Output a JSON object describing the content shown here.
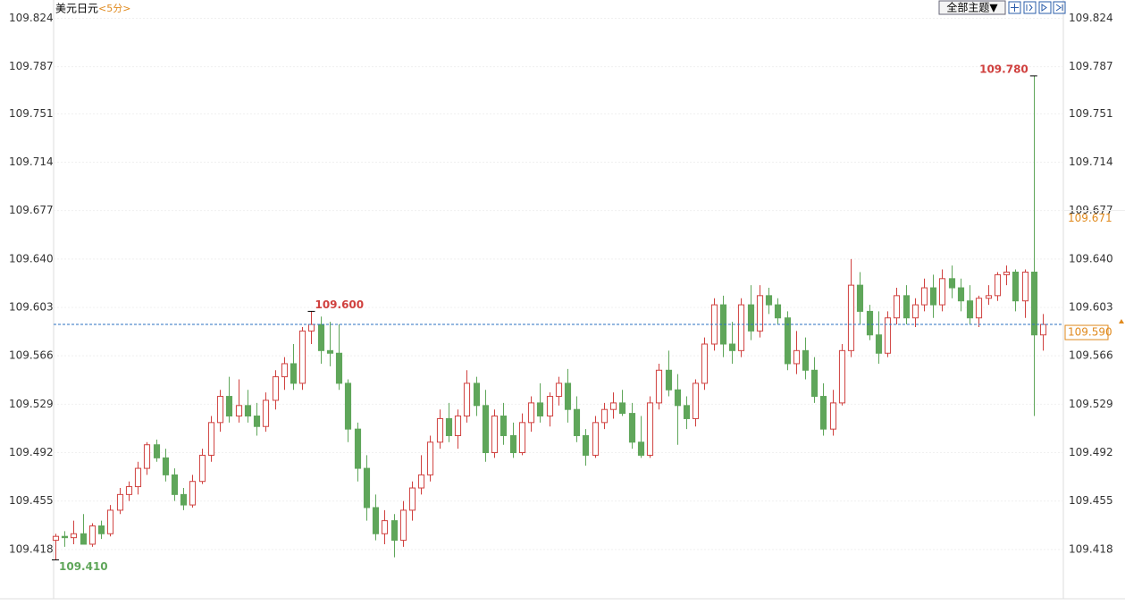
{
  "chart_data": {
    "type": "candlestick",
    "title": "美元日元",
    "period": "<5分>",
    "theme_button": "全部主题▼",
    "ylim": [
      109.381,
      109.838
    ],
    "yticks": [
      109.418,
      109.455,
      109.492,
      109.529,
      109.566,
      109.603,
      {
        "value": 109.64,
        "label": "109.640"
      },
      109.677,
      109.714,
      109.751,
      109.787,
      109.824
    ],
    "grid": true,
    "up_color": "#d0413f",
    "down_color": "#5fa65a",
    "open": [
      109.425,
      109.428,
      109.427,
      109.43,
      109.422,
      109.436,
      109.43,
      109.448,
      109.46,
      109.466,
      109.48,
      109.498,
      109.488,
      109.475,
      109.46,
      109.452,
      109.47,
      109.49,
      109.515,
      109.535,
      109.52,
      109.528,
      109.52,
      109.512,
      109.532,
      109.55,
      109.56,
      109.545,
      109.585,
      109.59,
      109.57,
      109.568,
      109.545,
      109.51,
      109.48,
      109.45,
      109.43,
      109.44,
      109.425,
      109.448,
      109.465,
      109.475,
      109.5,
      109.518,
      109.505,
      109.52,
      109.545,
      109.528,
      109.492,
      109.52,
      109.505,
      109.492,
      109.515,
      109.53,
      109.52,
      109.535,
      109.545,
      109.525,
      109.505,
      109.49,
      109.515,
      109.525,
      109.53,
      109.522,
      109.5,
      109.49,
      109.53,
      109.555,
      109.54,
      109.528,
      109.518,
      109.545,
      109.575,
      109.605,
      109.575,
      109.57,
      109.605,
      109.585,
      109.612,
      109.605,
      109.595,
      109.56,
      109.57,
      109.555,
      109.535,
      109.51,
      109.53,
      109.57,
      109.62,
      109.6,
      109.582,
      109.568,
      109.595,
      109.612,
      109.595,
      109.605,
      109.618,
      109.605,
      109.625,
      109.618,
      109.608,
      109.595,
      109.61,
      109.612,
      109.628,
      109.63,
      109.608,
      109.63,
      109.582
    ],
    "high": [
      109.43,
      109.432,
      109.44,
      109.445,
      109.438,
      109.44,
      109.452,
      109.465,
      109.47,
      109.485,
      109.5,
      109.502,
      109.495,
      109.48,
      109.465,
      109.475,
      109.495,
      109.52,
      109.54,
      109.55,
      109.548,
      109.54,
      109.53,
      109.538,
      109.555,
      109.565,
      109.575,
      109.588,
      109.6,
      109.596,
      109.592,
      109.59,
      109.548,
      109.515,
      109.49,
      109.46,
      109.448,
      109.445,
      109.455,
      109.47,
      109.49,
      109.505,
      109.525,
      109.53,
      109.525,
      109.555,
      109.55,
      109.54,
      109.525,
      109.53,
      109.515,
      109.522,
      109.535,
      109.545,
      109.538,
      109.55,
      109.556,
      109.535,
      109.51,
      109.52,
      109.53,
      109.538,
      109.54,
      109.53,
      109.52,
      109.535,
      109.56,
      109.57,
      109.552,
      109.535,
      109.548,
      109.58,
      109.61,
      109.612,
      109.592,
      109.61,
      109.62,
      109.62,
      109.618,
      109.61,
      109.6,
      109.585,
      109.58,
      109.565,
      109.545,
      109.54,
      109.575,
      109.64,
      109.63,
      109.605,
      109.6,
      109.6,
      109.618,
      109.62,
      109.61,
      109.625,
      109.628,
      109.632,
      109.635,
      109.625,
      109.62,
      109.612,
      109.62,
      109.63,
      109.635,
      109.632,
      109.632,
      109.78,
      109.598
    ],
    "low": [
      109.41,
      109.42,
      109.422,
      109.425,
      109.42,
      109.426,
      109.428,
      109.445,
      109.455,
      109.46,
      109.475,
      109.485,
      109.47,
      109.455,
      109.448,
      109.45,
      109.468,
      109.485,
      109.508,
      109.515,
      109.515,
      109.515,
      109.505,
      109.508,
      109.525,
      109.54,
      109.54,
      109.54,
      109.575,
      109.56,
      109.558,
      109.54,
      109.5,
      109.47,
      109.44,
      109.425,
      109.422,
      109.412,
      109.42,
      109.44,
      109.46,
      109.47,
      109.495,
      109.5,
      109.495,
      109.515,
      109.52,
      109.485,
      109.488,
      109.498,
      109.488,
      109.49,
      109.508,
      109.515,
      109.512,
      109.528,
      109.515,
      109.5,
      109.482,
      109.488,
      109.51,
      109.518,
      109.52,
      109.495,
      109.488,
      109.488,
      109.525,
      109.535,
      109.498,
      109.51,
      109.512,
      109.54,
      109.57,
      109.565,
      109.56,
      109.565,
      109.578,
      109.58,
      109.598,
      109.59,
      109.555,
      109.552,
      109.548,
      109.53,
      109.505,
      109.505,
      109.528,
      109.565,
      109.59,
      109.578,
      109.56,
      109.565,
      109.59,
      109.59,
      109.588,
      109.6,
      109.595,
      109.6,
      109.61,
      109.6,
      109.59,
      109.588,
      109.605,
      109.608,
      109.62,
      109.6,
      109.595,
      109.52,
      109.57
    ],
    "close": [
      109.428,
      109.427,
      109.43,
      109.422,
      109.436,
      109.43,
      109.448,
      109.46,
      109.466,
      109.48,
      109.498,
      109.488,
      109.475,
      109.46,
      109.452,
      109.47,
      109.49,
      109.515,
      109.535,
      109.52,
      109.528,
      109.52,
      109.512,
      109.532,
      109.55,
      109.56,
      109.545,
      109.585,
      109.59,
      109.57,
      109.568,
      109.545,
      109.51,
      109.48,
      109.45,
      109.43,
      109.44,
      109.425,
      109.448,
      109.465,
      109.475,
      109.5,
      109.518,
      109.505,
      109.52,
      109.545,
      109.528,
      109.492,
      109.52,
      109.505,
      109.492,
      109.515,
      109.53,
      109.52,
      109.535,
      109.545,
      109.525,
      109.505,
      109.49,
      109.515,
      109.525,
      109.53,
      109.522,
      109.5,
      109.49,
      109.53,
      109.555,
      109.54,
      109.528,
      109.518,
      109.545,
      109.575,
      109.605,
      109.575,
      109.57,
      109.605,
      109.585,
      109.612,
      109.605,
      109.595,
      109.56,
      109.57,
      109.555,
      109.535,
      109.51,
      109.53,
      109.57,
      109.62,
      109.6,
      109.582,
      109.568,
      109.595,
      109.612,
      109.595,
      109.605,
      109.618,
      109.605,
      109.625,
      109.618,
      109.608,
      109.595,
      109.61,
      109.612,
      109.628,
      109.63,
      109.608,
      109.63,
      109.582,
      109.59
    ],
    "annotations": [
      {
        "field": "high",
        "value": 109.6,
        "label": "109.600",
        "color": "#d0413f"
      },
      {
        "field": "high",
        "value": 109.78,
        "label": "109.780",
        "color": "#d0413f"
      },
      {
        "field": "low",
        "value": 109.41,
        "label": "109.410",
        "color": "#5fa65a"
      }
    ],
    "prev_close": 109.671,
    "last_price": {
      "value": 109.59,
      "label": "109.590"
    }
  }
}
